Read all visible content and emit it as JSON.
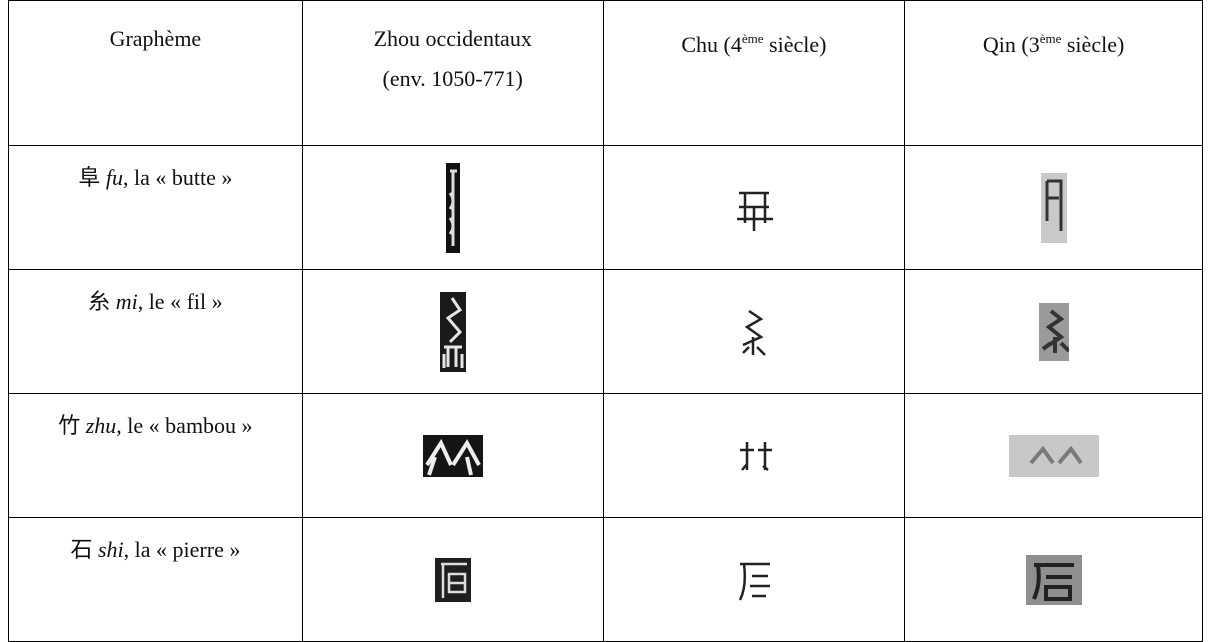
{
  "table": {
    "header": [
      [
        {
          "text": "Graphème"
        }
      ],
      [
        {
          "text": "Zhou occidentaux"
        },
        {
          "text": "(env. 1050-771)",
          "line": 2
        }
      ],
      [
        {
          "text": "Chu (4"
        },
        {
          "sup": "ème"
        },
        {
          "text": " siècle)"
        }
      ],
      [
        {
          "text": "Qin (3"
        },
        {
          "sup": "ème"
        },
        {
          "text": " siècle)"
        }
      ]
    ],
    "rows": [
      {
        "hanzi": "阜",
        "romanization": "fu",
        "gloss": ", la « butte »"
      },
      {
        "hanzi": "糸",
        "romanization": "mi",
        "gloss": ", le « fil »"
      },
      {
        "hanzi": "竹",
        "romanization": "zhu",
        "gloss": ", le « bambou »"
      },
      {
        "hanzi": "石",
        "romanization": "shi",
        "gloss": ", la « pierre »"
      }
    ]
  }
}
